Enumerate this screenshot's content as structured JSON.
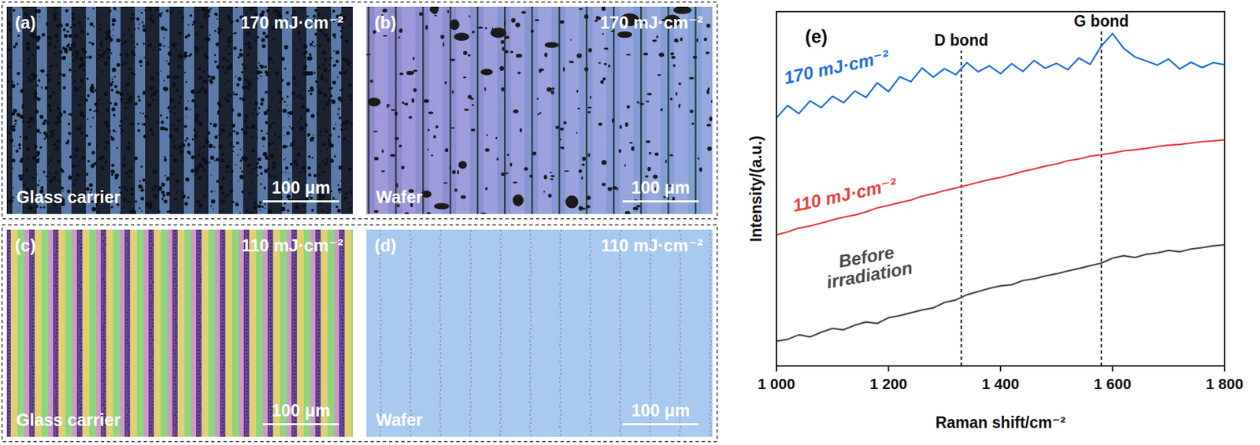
{
  "panels": [
    {
      "letter": "(a)",
      "fluence": "170 mJ·cm⁻²",
      "substrate": "Glass carrier",
      "scale_bar": "100 μm"
    },
    {
      "letter": "(b)",
      "fluence": "170 mJ·cm⁻²",
      "substrate": "Wafer",
      "scale_bar": "100 μm"
    },
    {
      "letter": "(c)",
      "fluence": "110 mJ·cm⁻²",
      "substrate": "Glass carrier",
      "scale_bar": "100 μm"
    },
    {
      "letter": "(d)",
      "fluence": "110 mJ·cm⁻²",
      "substrate": "Wafer",
      "scale_bar": "100 μm"
    }
  ],
  "chart_data": {
    "type": "line",
    "panel_label": "(e)",
    "x_label": "Raman shift/cm⁻²",
    "y_label": "Intensity/(a.u.)",
    "x": [
      1000,
      1020,
      1040,
      1060,
      1080,
      1100,
      1120,
      1140,
      1160,
      1180,
      1200,
      1220,
      1240,
      1260,
      1280,
      1300,
      1320,
      1340,
      1360,
      1380,
      1400,
      1420,
      1440,
      1460,
      1480,
      1500,
      1520,
      1540,
      1560,
      1580,
      1600,
      1620,
      1640,
      1660,
      1680,
      1700,
      1720,
      1740,
      1760,
      1780,
      1800
    ],
    "series": [
      {
        "name": "170 mJ·cm⁻²",
        "color": "#1f6fe0",
        "values": [
          70,
          73.5,
          71.2,
          74.8,
          72.9,
          76.1,
          74.3,
          77.6,
          75.8,
          79.9,
          77.4,
          81.6,
          80.2,
          84.1,
          81.5,
          83.9,
          82.2,
          85.6,
          83.0,
          84.7,
          82.5,
          85.3,
          83.1,
          86.2,
          84.0,
          85.4,
          83.6,
          86.9,
          85.1,
          90.3,
          93.8,
          89.6,
          87.2,
          86.1,
          84.9,
          86.6,
          83.8,
          85.7,
          84.2,
          85.6,
          85.0
        ]
      },
      {
        "name": "110 mJ·cm⁻²",
        "color": "#e8403f",
        "values": [
          37,
          37.8,
          38.9,
          39.5,
          40.3,
          41.2,
          42.0,
          42.6,
          43.5,
          44.6,
          45.3,
          46.1,
          46.8,
          47.9,
          48.6,
          49.5,
          50.2,
          51.0,
          51.8,
          52.6,
          53.2,
          54.0,
          54.9,
          55.6,
          56.4,
          57.0,
          57.9,
          58.4,
          59.2,
          59.6,
          60.1,
          60.7,
          61.0,
          61.4,
          61.9,
          62.3,
          62.5,
          62.9,
          63.3,
          63.5,
          63.8
        ]
      },
      {
        "name": "Before irradiation",
        "color": "#4a4a4a",
        "values": [
          7,
          7.5,
          8.8,
          8.2,
          9.5,
          10.6,
          10.2,
          11.5,
          12.4,
          12.0,
          13.6,
          14.2,
          15.0,
          15.8,
          16.4,
          17.9,
          18.6,
          20.1,
          21.0,
          21.9,
          22.6,
          22.9,
          24.1,
          24.6,
          25.4,
          26.0,
          26.8,
          27.5,
          28.3,
          29.0,
          30.4,
          31.1,
          30.6,
          31.5,
          31.9,
          32.6,
          32.2,
          33.0,
          33.4,
          33.9,
          34.2
        ]
      }
    ],
    "xlim": [
      1000,
      1800
    ],
    "xticks": [
      {
        "value": 1000,
        "label": "1 000"
      },
      {
        "value": 1200,
        "label": "1 200"
      },
      {
        "value": 1400,
        "label": "1 400"
      },
      {
        "value": 1600,
        "label": "1 600"
      },
      {
        "value": 1800,
        "label": "1 800"
      }
    ],
    "ylim": [
      0,
      100
    ],
    "tick_labels": "x",
    "grid": false,
    "annotations": [
      {
        "label": "D bond",
        "x": 1330
      },
      {
        "label": "G bond",
        "x": 1580
      }
    ]
  }
}
